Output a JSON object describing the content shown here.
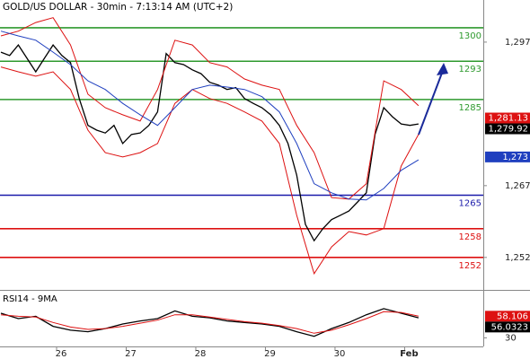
{
  "chart_data": [
    {
      "type": "line",
      "title": "GOLD/US DOLLAR - 30min - 7:13:14 AM (UTC+2)",
      "xlim": [
        25.187,
        32.13
      ],
      "ylim": [
        1245.4,
        1305.8
      ],
      "yticks": [
        {
          "value": 1297,
          "label": "1,297"
        },
        {
          "value": 1267,
          "label": "1,267"
        },
        {
          "value": 1252,
          "label": "1,252"
        }
      ],
      "levels": [
        {
          "value": 1300,
          "color": "#2e9a2e"
        },
        {
          "value": 1293,
          "color": "#2e9a2e"
        },
        {
          "value": 1285,
          "color": "#2e9a2e"
        },
        {
          "value": 1265,
          "color": "#1a1aaa"
        },
        {
          "value": 1258,
          "color": "#dd1111"
        },
        {
          "value": 1252,
          "color": "#dd1111"
        }
      ],
      "price_labels": [
        {
          "value": 1281.13,
          "label": "1,281.13",
          "color": "#dd1111"
        },
        {
          "value": 1279.92,
          "label": "1,279.92",
          "color": "#000000"
        },
        {
          "value": 1273,
          "label": "1,273",
          "color": "#1f3fbf"
        }
      ],
      "series": [
        {
          "color": "#000000",
          "x": [
            25.2,
            25.325,
            25.45,
            25.575,
            25.7,
            25.825,
            25.95,
            26.075,
            26.2,
            26.325,
            26.45,
            26.575,
            26.7,
            26.825,
            26.95,
            27.075,
            27.2,
            27.325,
            27.45,
            27.575,
            27.7,
            27.825,
            27.95,
            28.075,
            28.2,
            28.325,
            28.45,
            28.575,
            28.7,
            28.825,
            28.95,
            29.075,
            29.2,
            29.325,
            29.45,
            29.575,
            29.7,
            29.825,
            29.95,
            30.075,
            30.2,
            30.325,
            30.45,
            30.575,
            30.7,
            30.825,
            30.95,
            31.075,
            31.2
          ],
          "values": [
            1294.9,
            1294.2,
            1296.4,
            1293.6,
            1290.8,
            1293.6,
            1296.4,
            1294.2,
            1292.7,
            1285.2,
            1279.6,
            1278.6,
            1278.0,
            1279.6,
            1275.8,
            1277.7,
            1278.0,
            1279.6,
            1282.4,
            1294.6,
            1292.7,
            1292.3,
            1291.2,
            1290.4,
            1288.6,
            1288.0,
            1287.1,
            1287.5,
            1285.2,
            1284.2,
            1283.3,
            1281.8,
            1279.6,
            1275.8,
            1269.2,
            1258.9,
            1255.5,
            1258.0,
            1259.9,
            1260.8,
            1261.7,
            1263.6,
            1265.5,
            1277.7,
            1283.3,
            1281.4,
            1279.9,
            1279.6,
            1279.9
          ]
        },
        {
          "color": "#dd1111",
          "x": [
            25.2,
            25.45,
            25.7,
            25.95,
            26.2,
            26.45,
            26.7,
            26.95,
            27.2,
            27.45,
            27.7,
            27.95,
            28.2,
            28.45,
            28.7,
            28.95,
            29.2,
            29.45,
            29.7,
            29.95,
            30.2,
            30.45,
            30.7,
            30.95,
            31.2
          ],
          "values": [
            1298.3,
            1299.3,
            1301.1,
            1302.1,
            1296.4,
            1286.1,
            1283.3,
            1281.8,
            1280.5,
            1287.1,
            1297.4,
            1296.4,
            1292.7,
            1291.8,
            1289.3,
            1288.0,
            1287.1,
            1279.6,
            1273.9,
            1264.5,
            1264.2,
            1267.4,
            1288.9,
            1287.1,
            1283.7
          ]
        },
        {
          "color": "#dd1111",
          "x": [
            25.2,
            25.45,
            25.7,
            25.95,
            26.2,
            26.45,
            26.7,
            26.95,
            27.2,
            27.45,
            27.7,
            27.95,
            28.2,
            28.45,
            28.7,
            28.95,
            29.2,
            29.45,
            29.7,
            29.95,
            30.2,
            30.45,
            30.7,
            30.95,
            31.2
          ],
          "values": [
            1291.8,
            1290.8,
            1289.9,
            1290.8,
            1287.1,
            1278.6,
            1273.9,
            1273.0,
            1273.9,
            1275.8,
            1284.2,
            1287.1,
            1285.2,
            1284.2,
            1282.4,
            1280.5,
            1275.8,
            1260.8,
            1248.6,
            1254.2,
            1257.4,
            1256.7,
            1258.0,
            1271.1,
            1277.7
          ]
        },
        {
          "color": "#1f3fbf",
          "x": [
            25.2,
            25.45,
            25.7,
            25.95,
            26.2,
            26.45,
            26.7,
            26.95,
            27.2,
            27.45,
            27.7,
            27.95,
            28.2,
            28.45,
            28.7,
            28.95,
            29.2,
            29.45,
            29.7,
            29.95,
            30.2,
            30.45,
            30.7,
            30.95,
            31.2
          ],
          "values": [
            1299.3,
            1298.3,
            1297.4,
            1294.9,
            1292.3,
            1288.9,
            1287.1,
            1284.2,
            1281.8,
            1279.6,
            1283.3,
            1287.1,
            1288.0,
            1287.6,
            1287.1,
            1285.6,
            1282.4,
            1275.8,
            1267.4,
            1265.5,
            1264.2,
            1264.0,
            1266.4,
            1270.2,
            1272.4
          ]
        }
      ]
    },
    {
      "type": "line",
      "title": "RSI14 - 9MA",
      "xlim": [
        25.187,
        32.13
      ],
      "ylim": [
        20,
        90
      ],
      "yticks": [
        30
      ],
      "xticks": [
        26,
        27,
        28,
        29,
        30,
        {
          "value": 31,
          "label": "Feb"
        }
      ],
      "price_labels": [
        {
          "value": 58.106,
          "color": "#dd1111"
        },
        {
          "value": 56.0323,
          "color": "#000000"
        }
      ],
      "series": [
        {
          "color": "#000000",
          "x": [
            25.2,
            25.45,
            25.7,
            25.95,
            26.2,
            26.45,
            26.7,
            26.95,
            27.2,
            27.45,
            27.7,
            27.95,
            28.2,
            28.45,
            28.7,
            28.95,
            29.2,
            29.45,
            29.7,
            29.95,
            30.2,
            30.45,
            30.7,
            30.95,
            31.2
          ],
          "values": [
            62,
            55,
            58,
            45,
            40,
            38,
            42,
            48,
            52,
            55,
            65,
            58,
            56,
            52,
            50,
            48,
            45,
            38,
            32,
            42,
            50,
            60,
            68,
            62,
            56
          ]
        },
        {
          "color": "#dd1111",
          "x": [
            25.2,
            25.45,
            25.7,
            25.95,
            26.2,
            26.45,
            26.7,
            26.95,
            27.2,
            27.45,
            27.7,
            27.95,
            28.2,
            28.45,
            28.7,
            28.95,
            29.2,
            29.45,
            29.7,
            29.95,
            30.2,
            30.45,
            30.7,
            30.95,
            31.2
          ],
          "values": [
            60,
            58,
            57,
            50,
            44,
            41,
            42,
            45,
            49,
            53,
            60,
            60,
            57,
            54,
            51,
            49,
            46,
            42,
            36,
            40,
            47,
            55,
            64,
            63,
            58.1
          ]
        }
      ]
    }
  ]
}
